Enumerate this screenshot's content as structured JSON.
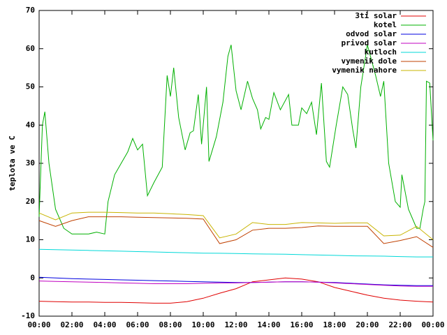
{
  "chart_data": {
    "type": "line",
    "ylabel": "teplota ve C",
    "xlim": [
      0,
      24
    ],
    "ylim": [
      -10,
      70
    ],
    "xticks": [
      {
        "value": 0,
        "label": "00:00"
      },
      {
        "value": 2,
        "label": "02:00"
      },
      {
        "value": 4,
        "label": "04:00"
      },
      {
        "value": 6,
        "label": "06:00"
      },
      {
        "value": 8,
        "label": "08:00"
      },
      {
        "value": 10,
        "label": "10:00"
      },
      {
        "value": 12,
        "label": "12:00"
      },
      {
        "value": 14,
        "label": "14:00"
      },
      {
        "value": 16,
        "label": "16:00"
      },
      {
        "value": 18,
        "label": "18:00"
      },
      {
        "value": 20,
        "label": "20:00"
      },
      {
        "value": 22,
        "label": "22:00"
      },
      {
        "value": 24,
        "label": "00:00"
      }
    ],
    "yticks": [
      -10,
      0,
      10,
      20,
      30,
      40,
      50,
      60,
      70
    ],
    "legend": "top-right",
    "x": [
      0,
      1,
      2,
      3,
      4,
      5,
      6,
      7,
      8,
      9,
      10,
      11,
      12,
      13,
      14,
      15,
      16,
      17,
      18,
      19,
      20,
      21,
      22,
      23,
      24
    ],
    "series": [
      {
        "name": "3ti solar",
        "color": "#e00000",
        "values": [
          -6.1,
          -6.2,
          -6.3,
          -6.3,
          -6.4,
          -6.4,
          -6.5,
          -6.6,
          -6.6,
          -6.2,
          -5.3,
          -4,
          -2.8,
          -1,
          -0.5,
          0,
          -0.3,
          -1,
          -2.5,
          -3.5,
          -4.5,
          -5.3,
          -5.8,
          -6.1,
          -6.3
        ]
      },
      {
        "name": "kotel",
        "color": "#00b000",
        "x": [
          0,
          0.2,
          0.35,
          0.6,
          1,
          1.5,
          2,
          2.5,
          3,
          3.5,
          4,
          4.2,
          4.6,
          5,
          5.4,
          5.7,
          6,
          6.3,
          6.6,
          7,
          7.5,
          7.8,
          8,
          8.2,
          8.5,
          8.9,
          9.2,
          9.4,
          9.7,
          9.9,
          10.2,
          10.35,
          10.8,
          11.2,
          11.5,
          11.7,
          12,
          12.3,
          12.7,
          13,
          13.3,
          13.5,
          13.8,
          14,
          14.3,
          14.7,
          15.2,
          15.4,
          15.8,
          16,
          16.3,
          16.6,
          16.9,
          17.2,
          17.5,
          17.7,
          18.1,
          18.5,
          18.8,
          19.1,
          19.3,
          19.6,
          20,
          20.5,
          20.8,
          21,
          21.3,
          21.7,
          22,
          22.1,
          22.5,
          23,
          23.2,
          23.4,
          23.5,
          23.6,
          23.8,
          24
        ],
        "values": [
          16,
          40,
          43.5,
          30,
          18,
          13,
          11.5,
          11.5,
          11.5,
          12,
          11.5,
          20,
          27,
          30,
          33,
          36.5,
          33.5,
          35,
          21.5,
          25,
          29,
          53,
          47.5,
          55,
          42,
          33.5,
          38,
          38.5,
          48,
          35,
          50,
          30.5,
          37,
          46,
          58,
          61,
          49,
          44,
          51.5,
          47,
          44,
          39,
          42,
          41.5,
          48.5,
          44,
          48,
          40,
          40,
          44.5,
          43,
          46,
          37.5,
          51,
          30.5,
          29,
          40,
          50,
          48,
          39,
          34,
          50,
          61,
          53,
          47.5,
          51.5,
          30,
          20,
          18.5,
          27,
          18,
          13,
          13,
          18,
          20,
          51.5,
          51,
          36
        ]
      },
      {
        "name": "odvod solar",
        "color": "#0000e0",
        "values": [
          0.2,
          0,
          -0.2,
          -0.3,
          -0.4,
          -0.5,
          -0.6,
          -0.7,
          -0.8,
          -0.9,
          -1,
          -1.1,
          -1.2,
          -1.2,
          -1.1,
          -1,
          -1,
          -1.1,
          -1.2,
          -1.4,
          -1.6,
          -1.8,
          -1.9,
          -2,
          -2
        ]
      },
      {
        "name": "privod solar",
        "color": "#c000c0",
        "values": [
          -0.8,
          -0.9,
          -1,
          -1.1,
          -1.2,
          -1.3,
          -1.4,
          -1.5,
          -1.5,
          -1.5,
          -1.4,
          -1.3,
          -1.3,
          -1.2,
          -1.1,
          -1,
          -1,
          -1.1,
          -1.3,
          -1.5,
          -1.7,
          -1.9,
          -2.1,
          -2.2,
          -2.2
        ]
      },
      {
        "name": "kutloch",
        "color": "#00d8d8",
        "values": [
          7.5,
          7.4,
          7.3,
          7.2,
          7.1,
          7,
          6.9,
          6.8,
          6.7,
          6.6,
          6.5,
          6.45,
          6.4,
          6.3,
          6.25,
          6.2,
          6.1,
          6,
          5.9,
          5.8,
          5.75,
          5.7,
          5.6,
          5.5,
          5.5
        ]
      },
      {
        "name": "vymenik dole",
        "color": "#c04000",
        "values": [
          15,
          13.5,
          15,
          16,
          16,
          16,
          15.9,
          15.8,
          15.7,
          15.6,
          15.4,
          9,
          10,
          12.5,
          13,
          13,
          13.2,
          13.6,
          13.5,
          13.5,
          13.5,
          9,
          9.8,
          10.8,
          8
        ]
      },
      {
        "name": "vymenik nahore",
        "color": "#c8b400",
        "values": [
          17,
          15.2,
          17,
          17.2,
          17.2,
          17.1,
          17,
          17,
          16.8,
          16.6,
          16.3,
          10.5,
          11.5,
          14.5,
          14,
          14,
          14.5,
          14.4,
          14.3,
          14.4,
          14.4,
          11,
          11.2,
          13.5,
          10
        ]
      }
    ]
  }
}
